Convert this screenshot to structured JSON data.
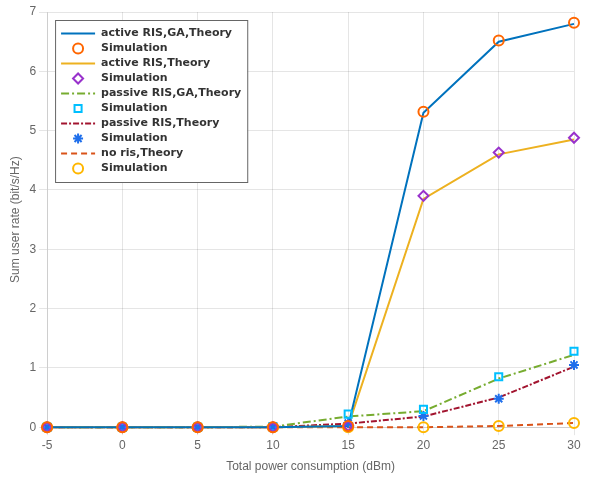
{
  "chart_data": {
    "type": "line",
    "xlabel": "Total power consumption (dBm)",
    "ylabel": "Sum user rate (bit/s/Hz)",
    "x": [
      -5,
      0,
      5,
      10,
      15,
      20,
      25,
      30
    ],
    "xlim": [
      -5,
      30
    ],
    "xticks": [
      -5,
      0,
      5,
      10,
      15,
      20,
      25,
      30
    ],
    "ylim": [
      0,
      7
    ],
    "yticks": [
      0,
      1,
      2,
      3,
      4,
      5,
      6,
      7
    ],
    "grid": true,
    "legend": "upper left",
    "series": [
      {
        "name": "active RIS,GA,Theory",
        "color": "#0072BD",
        "line_style": "solid",
        "values": [
          0.0,
          0.0,
          0.0,
          0.0,
          0.02,
          5.3,
          6.5,
          6.8
        ]
      },
      {
        "name": "Simulation",
        "color": "#FF6600",
        "marker": "circle",
        "line_style": "none",
        "values": [
          0.0,
          0.0,
          0.0,
          0.0,
          0.02,
          5.32,
          6.52,
          6.82
        ]
      },
      {
        "name": "active RIS,Theory",
        "color": "#EDB120",
        "line_style": "solid",
        "values": [
          0.0,
          0.0,
          0.0,
          0.0,
          0.02,
          3.85,
          4.6,
          4.85
        ]
      },
      {
        "name": "Simulation",
        "color": "#9932CC",
        "marker": "diamond",
        "line_style": "none",
        "values": [
          0.0,
          0.0,
          0.0,
          0.0,
          0.02,
          3.9,
          4.63,
          4.88
        ]
      },
      {
        "name": "passive RIS,GA,Theory",
        "color": "#77AC30",
        "line_style": "dashdot",
        "values": [
          0.0,
          0.0,
          0.0,
          0.01,
          0.18,
          0.27,
          0.82,
          1.22
        ]
      },
      {
        "name": "Simulation",
        "color": "#00BFFF",
        "marker": "square",
        "line_style": "none",
        "values": [
          0.0,
          0.0,
          0.0,
          0.01,
          0.22,
          0.3,
          0.85,
          1.28
        ]
      },
      {
        "name": "passive RIS,Theory",
        "color": "#A2142F",
        "line_style": "densely_dashdot",
        "values": [
          0.0,
          0.0,
          0.0,
          0.0,
          0.06,
          0.18,
          0.5,
          1.02
        ]
      },
      {
        "name": "Simulation",
        "color": "#1F6FEB",
        "marker": "star",
        "line_style": "none",
        "values": [
          0.0,
          0.0,
          0.0,
          0.0,
          0.07,
          0.19,
          0.48,
          1.05
        ]
      },
      {
        "name": "no ris,Theory",
        "color": "#D95319",
        "line_style": "dashed",
        "values": [
          0.0,
          0.0,
          0.0,
          0.0,
          0.0,
          0.0,
          0.02,
          0.07
        ]
      },
      {
        "name": "Simulation",
        "color": "#FFB700",
        "marker": "circle",
        "line_style": "none",
        "values": [
          0.0,
          0.0,
          0.0,
          0.0,
          0.0,
          0.0,
          0.02,
          0.07
        ]
      }
    ]
  }
}
